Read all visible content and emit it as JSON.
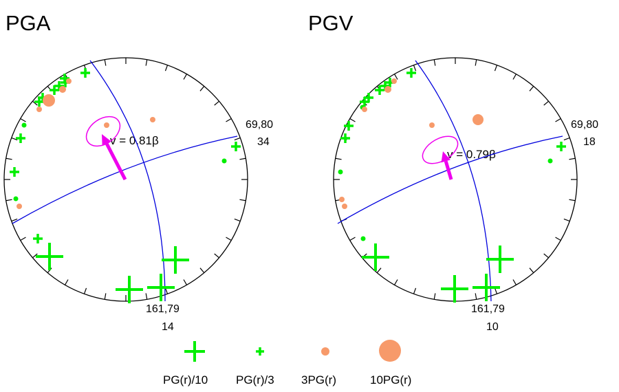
{
  "colors": {
    "circle": "#000000",
    "great_circle": "#0000dd",
    "green": "#00ee00",
    "orange": "#f79a6a",
    "magenta": "#ee00ee"
  },
  "chart_data": [
    {
      "type": "scatter",
      "title": "PGA",
      "velocity_label": "v = 0.81β",
      "plane_labels": [
        {
          "text": "69,80",
          "sub": "34"
        },
        {
          "text": "161,79",
          "sub": "14"
        }
      ],
      "green_cross_large": [
        [
          72,
          373
        ],
        [
          255,
          378
        ],
        [
          188,
          421
        ],
        [
          234,
          418
        ]
      ],
      "green_cross_small": [
        [
          124,
          106
        ],
        [
          86,
          125
        ],
        [
          79,
          131
        ],
        [
          95,
          120
        ],
        [
          62,
          142
        ],
        [
          57,
          148
        ],
        [
          30,
          201
        ],
        [
          21,
          250
        ],
        [
          55,
          347
        ],
        [
          343,
          213
        ],
        [
          94,
          114
        ]
      ],
      "green_dot": [
        [
          35,
          182
        ],
        [
          23,
          289
        ],
        [
          326,
          234
        ]
      ],
      "orange_dot": [
        [
          222,
          174
        ],
        [
          155,
          182
        ],
        [
          100,
          118
        ],
        [
          91,
          130
        ],
        [
          57,
          159
        ],
        [
          28,
          300
        ],
        [
          71,
          146
        ]
      ],
      "orange_dot_sizes": [
        4,
        4,
        4,
        5,
        4,
        4,
        9
      ]
    },
    {
      "type": "scatter",
      "title": "PGV",
      "velocity_label": "v = 0.79β",
      "plane_labels": [
        {
          "text": "69,80",
          "sub": "18"
        },
        {
          "text": "161,79",
          "sub": "10"
        }
      ],
      "green_cross_large": [
        [
          546,
          374
        ],
        [
          727,
          377
        ],
        [
          661,
          420
        ],
        [
          707,
          418
        ]
      ],
      "green_cross_small": [
        [
          598,
          106
        ],
        [
          560,
          125
        ],
        [
          552,
          131
        ],
        [
          567,
          120
        ],
        [
          536,
          142
        ],
        [
          530,
          148
        ],
        [
          502,
          201
        ],
        [
          507,
          183
        ],
        [
          816,
          213
        ]
      ],
      "green_dot": [
        [
          495,
          250
        ],
        [
          528,
          347
        ],
        [
          800,
          234
        ],
        [
          527,
          156
        ]
      ],
      "orange_dot": [
        [
          695,
          174
        ],
        [
          628,
          182
        ],
        [
          573,
          118
        ],
        [
          564,
          130
        ],
        [
          530,
          159
        ],
        [
          497,
          290
        ],
        [
          501,
          300
        ]
      ],
      "orange_dot_sizes": [
        8,
        4,
        4,
        5,
        4,
        4,
        4
      ]
    }
  ],
  "legend": [
    {
      "label": "PG(r)/10"
    },
    {
      "label": "PG(r)/3"
    },
    {
      "label": "3PG(r)"
    },
    {
      "label": "10PG(r)"
    }
  ]
}
